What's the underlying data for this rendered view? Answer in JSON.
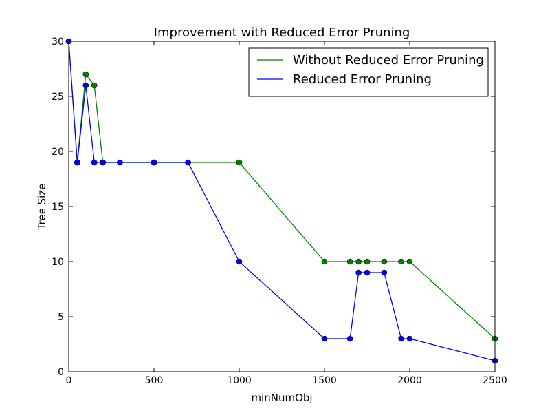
{
  "chart_data": {
    "type": "line",
    "title": "Improvement with Reduced Error Pruning",
    "xlabel": "minNumObj",
    "ylabel": "Tree Size",
    "xlim": [
      0,
      2500
    ],
    "ylim": [
      0,
      30
    ],
    "x_ticks": [
      0,
      500,
      1000,
      1500,
      2000,
      2500
    ],
    "y_ticks": [
      0,
      5,
      10,
      15,
      20,
      25,
      30
    ],
    "grid": false,
    "legend_position": "top-right",
    "series": [
      {
        "name": "Without Reduced Error Pruning",
        "color": "#008000",
        "x": [
          0,
          50,
          100,
          150,
          200,
          300,
          500,
          700,
          1000,
          1500,
          1650,
          1700,
          1750,
          1850,
          1950,
          2000,
          2500
        ],
        "y": [
          30,
          19,
          27,
          26,
          19,
          19,
          19,
          19,
          19,
          10,
          10,
          10,
          10,
          10,
          10,
          10,
          3
        ]
      },
      {
        "name": "Reduced Error Pruning",
        "color": "#0000ff",
        "x": [
          0,
          50,
          100,
          150,
          200,
          300,
          500,
          700,
          1000,
          1500,
          1650,
          1700,
          1750,
          1850,
          1950,
          2000,
          2500
        ],
        "y": [
          30,
          19,
          26,
          19,
          19,
          19,
          19,
          19,
          10,
          3,
          3,
          9,
          9,
          9,
          3,
          3,
          1
        ]
      }
    ]
  }
}
